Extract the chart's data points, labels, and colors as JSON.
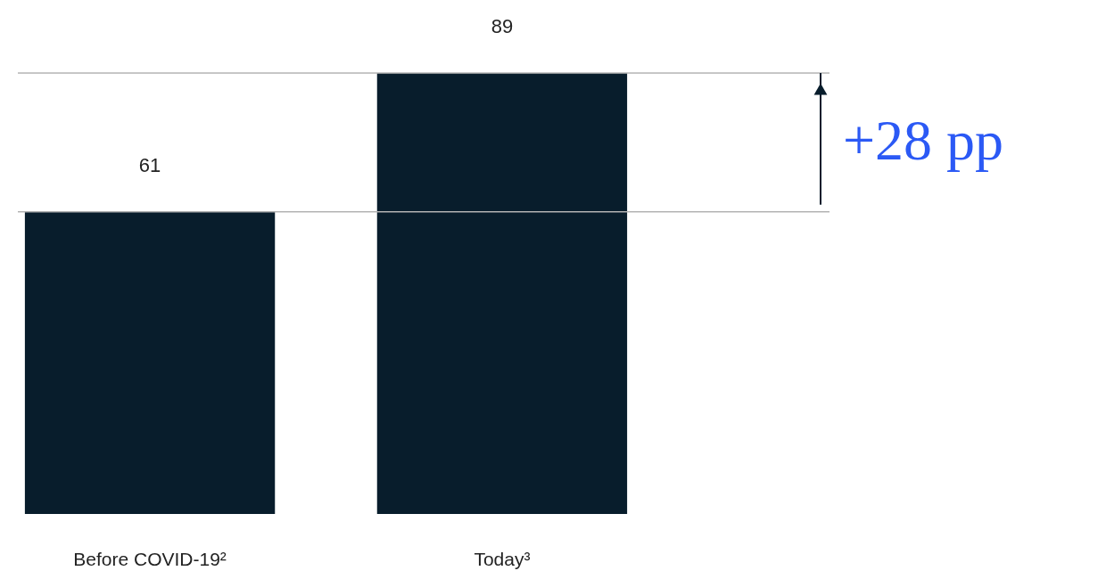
{
  "chart_data": {
    "type": "bar",
    "categories": [
      "Before COVID-19²",
      "Today³"
    ],
    "values": [
      61,
      89
    ],
    "color": "#081d2c",
    "data_labels": true,
    "ref_lines": [
      {
        "axis": "y",
        "value": 61,
        "color": "#b3b3b3"
      },
      {
        "axis": "y",
        "value": 89,
        "color": "#b3b3b3"
      }
    ],
    "annotations": [
      "+28 pp"
    ]
  }
}
